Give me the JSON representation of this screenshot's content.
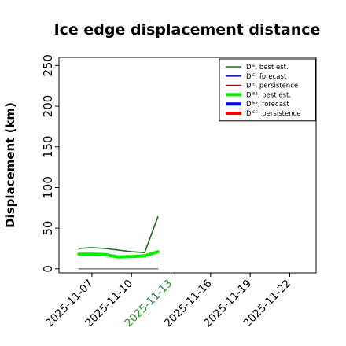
{
  "chart_data": {
    "type": "line",
    "title": "Ice edge displacement distance",
    "xlabel": "",
    "ylabel": "Displacement (km)",
    "ylim": [
      -5,
      260
    ],
    "xlim": [
      "2025-11-04T12:00",
      "2025-11-24"
    ],
    "yticks": [
      0,
      50,
      100,
      150,
      200,
      250
    ],
    "xticks": [
      {
        "date": "2025-11-07",
        "label": "2025-11-07",
        "color": "#000000"
      },
      {
        "date": "2025-11-10",
        "label": "2025-11-10",
        "color": "#000000"
      },
      {
        "date": "2025-11-13",
        "label": "2025-11-13",
        "color": "#2e8b2e"
      },
      {
        "date": "2025-11-16",
        "label": "2025-11-16",
        "color": "#000000"
      },
      {
        "date": "2025-11-19",
        "label": "2025-11-19",
        "color": "#000000"
      },
      {
        "date": "2025-11-22",
        "label": "2025-11-22",
        "color": "#000000"
      }
    ],
    "grid": false,
    "legend_position": "top-right",
    "series": [
      {
        "name": "Dᴵᴱ, best est.",
        "color": "#1a6b1a",
        "width": 1.6,
        "x": [
          "2025-11-06",
          "2025-11-07",
          "2025-11-08",
          "2025-11-09",
          "2025-11-10",
          "2025-11-11",
          "2025-11-12"
        ],
        "values": [
          25,
          26,
          25,
          23,
          21,
          20,
          64
        ]
      },
      {
        "name": "Dᴵᴱ, forecast",
        "color": "#1f1fb0",
        "width": 1.6,
        "x": [],
        "values": []
      },
      {
        "name": "Dᴵᴱ, persistence",
        "color": "#8b1a1a",
        "width": 1.6,
        "x": [],
        "values": []
      },
      {
        "name": "Dᴵᴱᴱ, best est.",
        "color": "#00ee00",
        "width": 4,
        "x": [
          "2025-11-06",
          "2025-11-07",
          "2025-11-08",
          "2025-11-09",
          "2025-11-10",
          "2025-11-11",
          "2025-11-12"
        ],
        "values": [
          18,
          18,
          17.5,
          14.5,
          15,
          16,
          21
        ]
      },
      {
        "name": "Dᴵᴱᴱ, forecast",
        "color": "#0000ff",
        "width": 4,
        "x": [],
        "values": []
      },
      {
        "name": "Dᴵᴱᴱ, persistence",
        "color": "#ff0000",
        "width": 4,
        "x": [],
        "values": []
      },
      {
        "color": "#888888",
        "width": 1.6,
        "x": [
          "2025-11-06",
          "2025-11-12"
        ],
        "values": [
          0,
          0
        ]
      }
    ]
  }
}
